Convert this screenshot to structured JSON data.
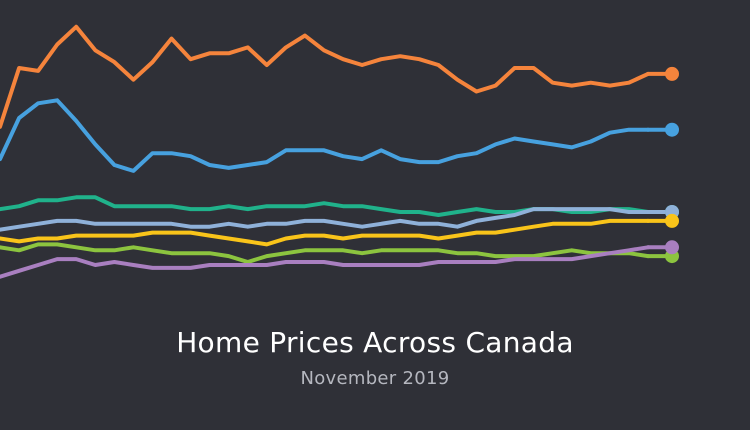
{
  "chart_data": {
    "type": "line",
    "title": "Home Prices Across Canada",
    "subtitle": "November 2019",
    "xlabel": "",
    "ylabel": "",
    "ylim": [
      0,
      100
    ],
    "grid": false,
    "legend": "none",
    "series": [
      {
        "color": "#f5843c",
        "values": [
          63,
          83,
          82,
          91,
          97,
          89,
          85,
          79,
          85,
          93,
          86,
          88,
          88,
          90,
          84,
          90,
          94,
          89,
          86,
          84,
          86,
          87,
          86,
          84,
          79,
          75,
          77,
          83,
          83,
          78,
          77,
          78,
          77,
          78,
          81
        ]
      },
      {
        "color": "#47a1df",
        "values": [
          52,
          66,
          71,
          72,
          65,
          57,
          50,
          48,
          54,
          54,
          53,
          50,
          49,
          50,
          51,
          55,
          55,
          55,
          53,
          52,
          55,
          52,
          51,
          51,
          53,
          54,
          57,
          59,
          58,
          57,
          56,
          58,
          61,
          62,
          62
        ]
      },
      {
        "color": "#20b28b",
        "values": [
          35,
          36,
          38,
          38,
          39,
          39,
          36,
          36,
          36,
          36,
          35,
          35,
          36,
          35,
          36,
          36,
          36,
          37,
          36,
          36,
          35,
          34,
          34,
          33,
          34,
          35,
          34,
          34,
          35,
          35,
          34,
          34,
          35,
          35,
          34
        ]
      },
      {
        "color": "#8fb1d9",
        "values": [
          28,
          29,
          30,
          31,
          31,
          30,
          30,
          30,
          30,
          30,
          29,
          29,
          30,
          29,
          30,
          30,
          31,
          31,
          30,
          29,
          30,
          31,
          30,
          30,
          29,
          31,
          32,
          33,
          35,
          35,
          35,
          35,
          35,
          34,
          34
        ]
      },
      {
        "color": "#f9c41a",
        "values": [
          25,
          24,
          25,
          25,
          26,
          26,
          26,
          26,
          27,
          27,
          27,
          26,
          25,
          24,
          23,
          25,
          26,
          26,
          25,
          26,
          26,
          26,
          26,
          25,
          26,
          27,
          27,
          28,
          29,
          30,
          30,
          30,
          31,
          31,
          31
        ]
      },
      {
        "color": "#8cc43f",
        "values": [
          22,
          21,
          23,
          23,
          22,
          21,
          21,
          22,
          21,
          20,
          20,
          20,
          19,
          17,
          19,
          20,
          21,
          21,
          21,
          20,
          21,
          21,
          21,
          21,
          20,
          20,
          19,
          19,
          19,
          20,
          21,
          20,
          20,
          20,
          19
        ]
      },
      {
        "color": "#a97fc0",
        "values": [
          12,
          14,
          16,
          18,
          18,
          16,
          17,
          16,
          15,
          15,
          15,
          16,
          16,
          16,
          16,
          17,
          17,
          17,
          16,
          16,
          16,
          16,
          16,
          17,
          17,
          17,
          17,
          18,
          18,
          18,
          18,
          19,
          20,
          21,
          22
        ]
      }
    ]
  }
}
